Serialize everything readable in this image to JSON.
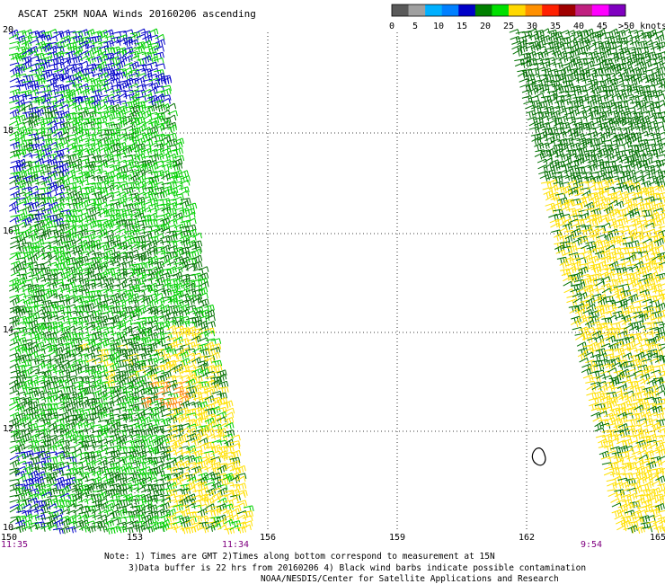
{
  "title": "ASCAT 25KM NOAA Winds 20160206 ascending",
  "colorbar": {
    "labels": [
      "0",
      "5",
      "10",
      "15",
      "20",
      "25",
      "30",
      "35",
      "40",
      "45",
      ">50 knots"
    ],
    "colors": [
      "#5a5a5a",
      "#a0a0a0",
      "#00b0ff",
      "#0080ff",
      "#0000c8",
      "#008000",
      "#00e000",
      "#ffd800",
      "#ff9000",
      "#ff2000",
      "#a00000",
      "#c02080",
      "#ff00ff",
      "#8000c0"
    ]
  },
  "axes": {
    "x_ticks": [
      "150",
      "153",
      "156",
      "159",
      "162",
      "165"
    ],
    "y_ticks": [
      "10",
      "12",
      "14",
      "16",
      "18",
      "20"
    ]
  },
  "swath_times": {
    "left_start": "11:35",
    "left_end": "11:34",
    "right": "9:54",
    "color": "#800080"
  },
  "barb_colors": {
    "blue": "#0000c8",
    "light_green": "#00d000",
    "dark_green": "#007000",
    "yellow": "#ffe000",
    "orange": "#ff8000"
  },
  "notes": {
    "line1": "Note: 1) Times are GMT 2)Times along bottom correspond to measurement at 15N",
    "line2": "3)Data buffer is 22 hrs from 20160206 4) Black wind barbs indicate possible contamination",
    "line3": "NOAA/NESDIS/Center for Satellite Applications and Research"
  }
}
